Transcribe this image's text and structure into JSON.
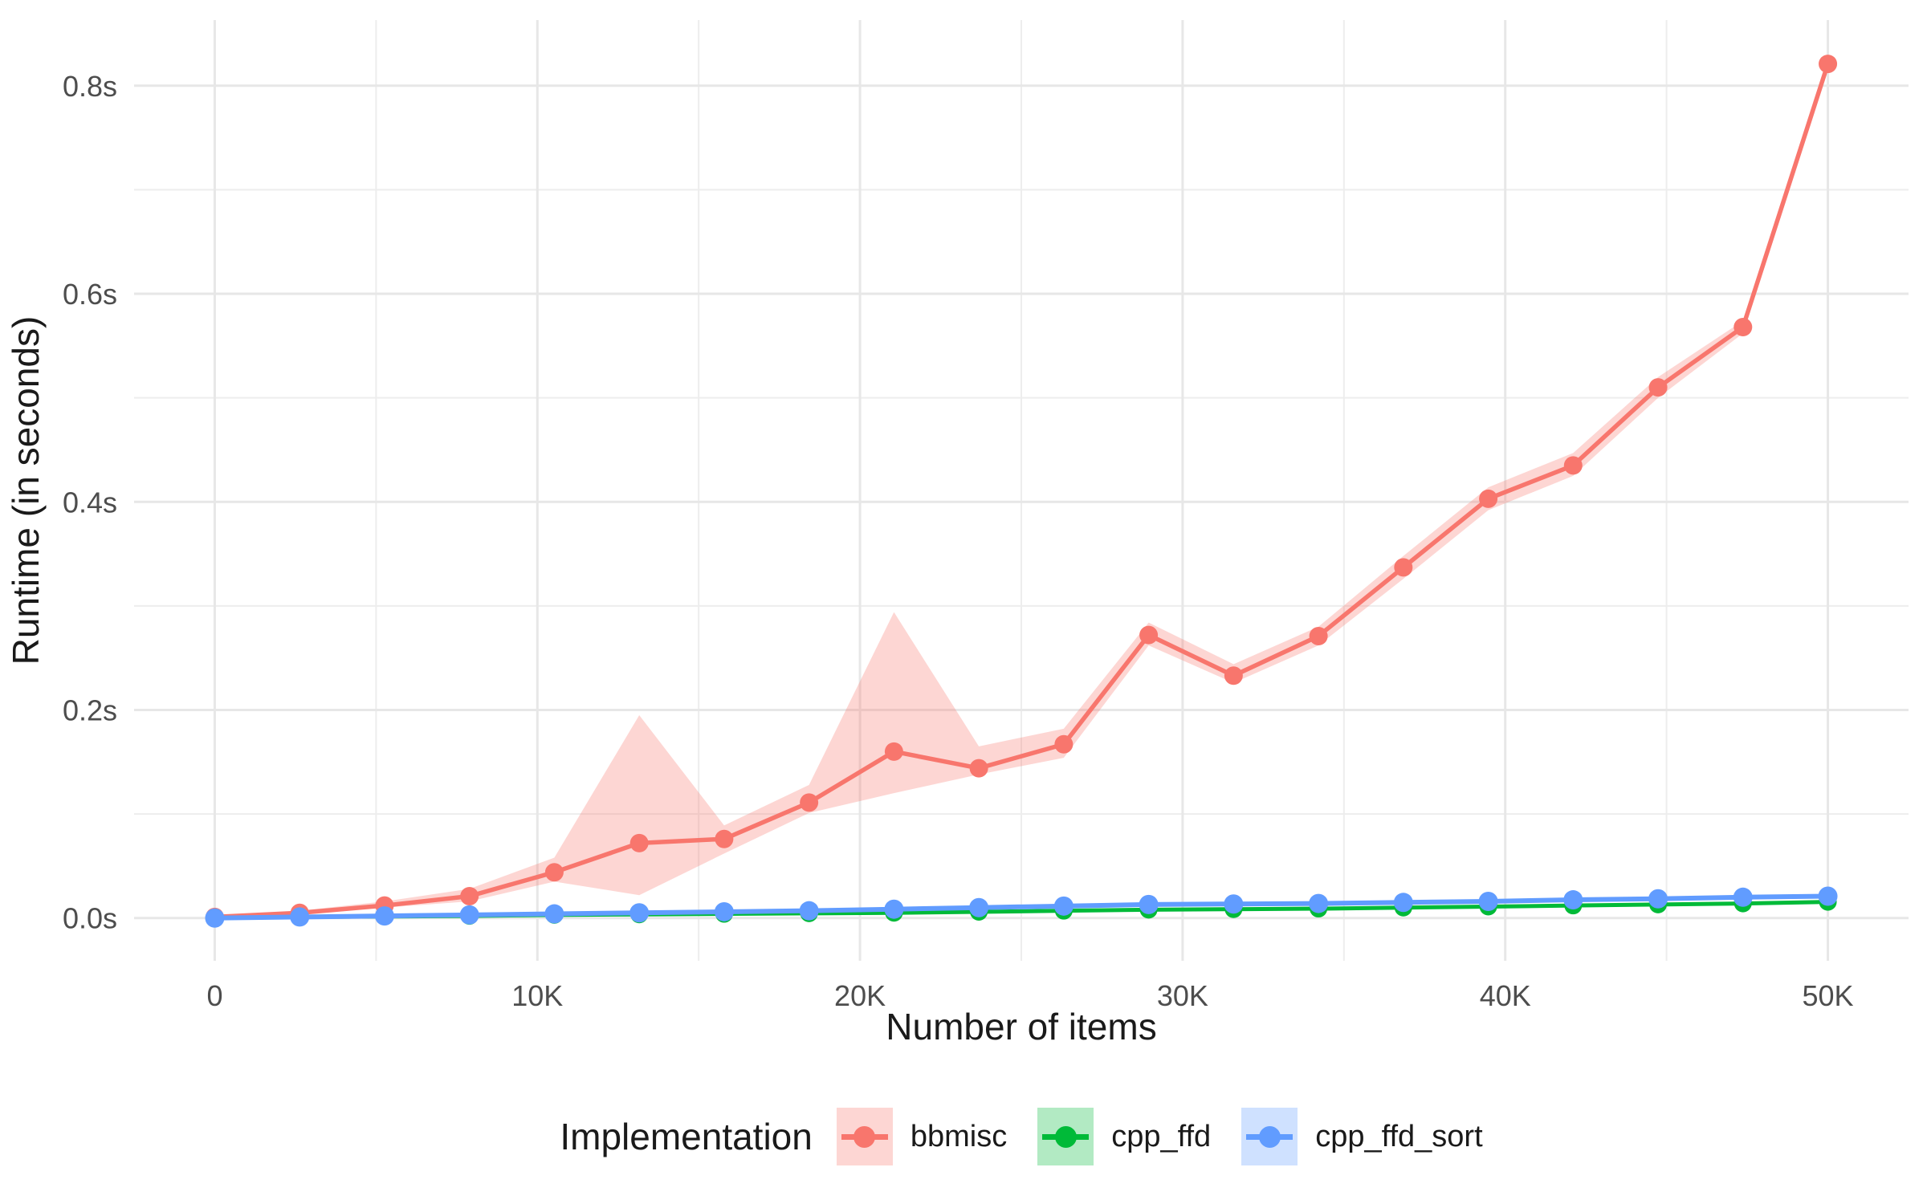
{
  "chart_data": {
    "type": "line",
    "title": "",
    "xlabel": "Number of items",
    "ylabel": "Runtime (in seconds)",
    "grid": true,
    "legend": {
      "title": "Implementation",
      "position": "bottom"
    },
    "xlim": [
      -2500,
      52500
    ],
    "ylim": [
      -0.0411,
      0.8631
    ],
    "x_ticks": [
      {
        "v": 0,
        "label": "0"
      },
      {
        "v": 10000,
        "label": "10K"
      },
      {
        "v": 20000,
        "label": "20K"
      },
      {
        "v": 30000,
        "label": "30K"
      },
      {
        "v": 40000,
        "label": "40K"
      },
      {
        "v": 50000,
        "label": "50K"
      }
    ],
    "x_minor": [
      5000,
      15000,
      25000,
      35000,
      45000
    ],
    "y_ticks": [
      {
        "v": 0.0,
        "label": "0.0s"
      },
      {
        "v": 0.2,
        "label": "0.2s"
      },
      {
        "v": 0.4,
        "label": "0.4s"
      },
      {
        "v": 0.6,
        "label": "0.6s"
      },
      {
        "v": 0.8,
        "label": "0.8s"
      }
    ],
    "y_minor": [
      0.1,
      0.3,
      0.5,
      0.7
    ],
    "x": [
      0,
      2632,
      5263,
      7895,
      10526,
      13158,
      15789,
      18421,
      21053,
      23684,
      26316,
      28947,
      31579,
      34211,
      36842,
      39474,
      42105,
      44737,
      47368,
      50000
    ],
    "series": [
      {
        "name": "bbmisc",
        "color": "#F8766D",
        "fill": "rgba(248,118,109,0.30)",
        "values": [
          0.001,
          0.005,
          0.012,
          0.021,
          0.044,
          0.072,
          0.076,
          0.111,
          0.16,
          0.144,
          0.167,
          0.272,
          0.233,
          0.271,
          0.337,
          0.403,
          0.435,
          0.51,
          0.568,
          0.821
        ],
        "lower": [
          0.001,
          0.004,
          0.01,
          0.016,
          0.035,
          0.022,
          0.062,
          0.101,
          0.12,
          0.138,
          0.154,
          0.262,
          0.226,
          0.262,
          0.326,
          0.392,
          0.425,
          0.5,
          0.562,
          0.818
        ],
        "upper": [
          0.001,
          0.007,
          0.016,
          0.028,
          0.058,
          0.195,
          0.089,
          0.128,
          0.294,
          0.165,
          0.182,
          0.284,
          0.244,
          0.28,
          0.348,
          0.414,
          0.447,
          0.52,
          0.574,
          0.824
        ]
      },
      {
        "name": "cpp_ffd",
        "color": "#00BA38",
        "fill": "rgba(0,186,56,0.30)",
        "values": [
          0.0,
          0.001,
          0.0015,
          0.002,
          0.003,
          0.0035,
          0.004,
          0.0045,
          0.005,
          0.006,
          0.007,
          0.008,
          0.0085,
          0.009,
          0.01,
          0.011,
          0.012,
          0.013,
          0.014,
          0.0155
        ]
      },
      {
        "name": "cpp_ffd_sort",
        "color": "#619CFF",
        "fill": "rgba(97,156,255,0.30)",
        "values": [
          0.0,
          0.001,
          0.002,
          0.003,
          0.004,
          0.005,
          0.006,
          0.007,
          0.0085,
          0.01,
          0.0115,
          0.013,
          0.0135,
          0.014,
          0.015,
          0.016,
          0.0175,
          0.0185,
          0.02,
          0.021
        ]
      }
    ],
    "style": {
      "grid_major_color": "#E7E7E7",
      "grid_minor_color": "#EDEDED",
      "tick_label_color": "#4D4D4D",
      "title_color": "#1a1a1a",
      "background": "#FFFFFF"
    }
  }
}
